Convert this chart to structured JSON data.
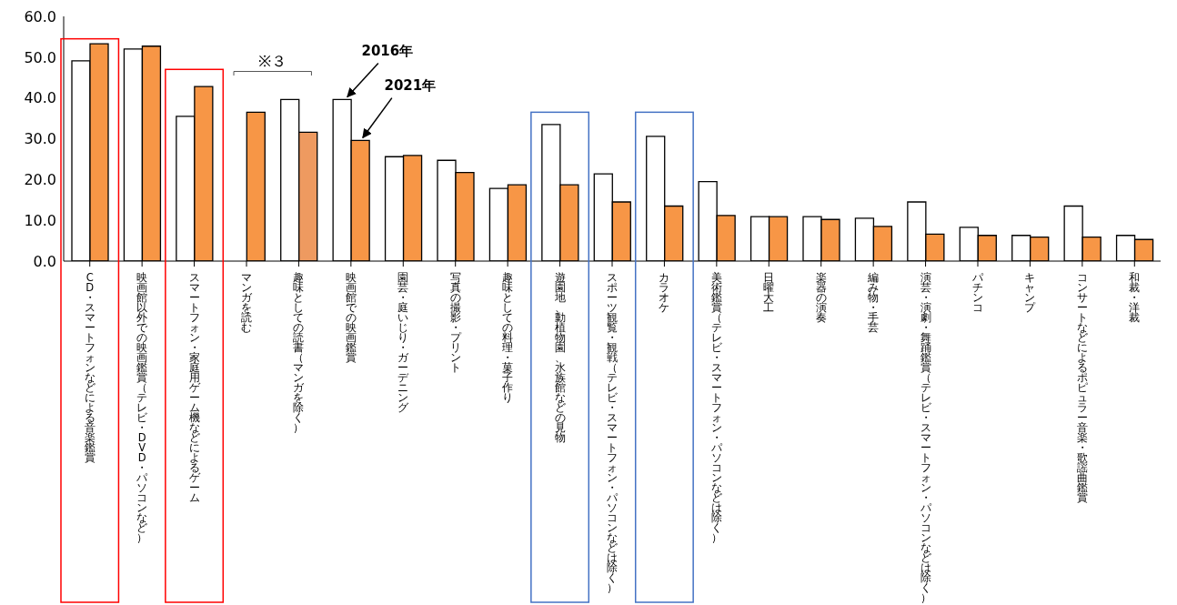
{
  "chart_data": {
    "type": "bar",
    "categories": [
      "CD・スマートフォンなどによる音楽鑑賞",
      "映画館以外での映画鑑賞（テレビ・DVD・パソコンなど）",
      "スマートフォン・家庭用ゲーム機などによるゲーム",
      "マンガを読む",
      "趣味としての読書（マンガを除く）",
      "映画館での映画鑑賞",
      "園芸・庭いじり・ガーデニング",
      "写真の撮影・プリント",
      "趣味としての料理・菓子作り",
      "遊園地、動植物園、水族館などの見物",
      "スポーツ観覧・観戦（テレビ・スマートフォン・パソコンなどは除く）",
      "カラオケ",
      "美術鑑賞（テレビ・スマートフォン・パソコンなどは除く）",
      "日曜大工",
      "楽器の演奏",
      "編み物・手芸",
      "演芸・演劇・舞踊鑑賞（テレビ・スマートフォン・パソコンなどは除く）",
      "パチンコ",
      "キャンプ",
      "コンサートなどによるポピュラー音楽・歌謡曲鑑賞",
      "和裁・洋裁"
    ],
    "series": [
      {
        "name": "2016年",
        "color": "#ffffff",
        "values": [
          49.1,
          52.0,
          35.5,
          null,
          39.6,
          39.6,
          25.6,
          24.7,
          17.8,
          33.5,
          21.4,
          30.6,
          19.5,
          10.9,
          10.9,
          10.5,
          14.5,
          8.3,
          6.3,
          13.5,
          6.3
        ]
      },
      {
        "name": "2021年",
        "color": "#f79646",
        "colors": [
          "#f79646",
          "#f79646",
          "#f79646",
          "#f79646",
          "#ee9a60",
          "#f79646",
          "#f79646",
          "#f79646",
          "#f79646",
          "#f79646",
          "#f79646",
          "#f79646",
          "#f79646",
          "#f79646",
          "#f79646",
          "#f79646",
          "#f79646",
          "#f79646",
          "#f79646",
          "#f79646",
          "#f79646"
        ],
        "values": [
          53.3,
          52.7,
          42.8,
          36.5,
          31.6,
          29.6,
          25.9,
          21.7,
          18.7,
          18.7,
          14.5,
          13.5,
          11.2,
          10.9,
          10.2,
          8.5,
          6.6,
          6.3,
          5.9,
          5.9,
          5.3
        ]
      }
    ],
    "ylim": [
      0,
      60
    ],
    "yticks": [
      {
        "value": 0,
        "label": "0.0"
      },
      {
        "value": 10,
        "label": "10.0"
      },
      {
        "value": 20,
        "label": "20.0"
      },
      {
        "value": 30,
        "label": "30.0"
      },
      {
        "value": 40,
        "label": "40.0"
      },
      {
        "value": 50,
        "label": "50.0"
      },
      {
        "value": 60,
        "label": "60.0"
      }
    ],
    "annotations": [
      "※３"
    ],
    "grid": false,
    "legend": false
  }
}
